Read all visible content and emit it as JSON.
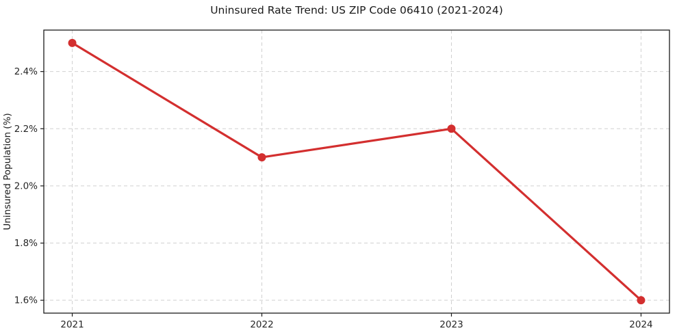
{
  "chart_data": {
    "type": "line",
    "title": "Uninsured Rate Trend: US ZIP Code 06410 (2021-2024)",
    "xlabel": "",
    "ylabel": "Uninsured Population (%)",
    "x": [
      2021,
      2022,
      2023,
      2024
    ],
    "values": [
      2.5,
      2.1,
      2.2,
      1.6
    ],
    "x_tick_labels": [
      "2021",
      "2022",
      "2023",
      "2024"
    ],
    "y_ticks": [
      1.6,
      1.8,
      2.0,
      2.2,
      2.4
    ],
    "y_tick_labels": [
      "1.6%",
      "1.8%",
      "2.0%",
      "2.2%",
      "2.4%"
    ],
    "xlim": [
      2020.85,
      2024.15
    ],
    "ylim": [
      1.555,
      2.545
    ],
    "grid": true,
    "grid_style": "dashed",
    "legend": "none",
    "marker": "circle",
    "colors": {
      "line": "#d32f2f",
      "marker": "#d32f2f",
      "grid": "#d0d0d0",
      "spine": "#1a1a1a",
      "text": "#1a1a1a",
      "background": "#ffffff"
    }
  }
}
